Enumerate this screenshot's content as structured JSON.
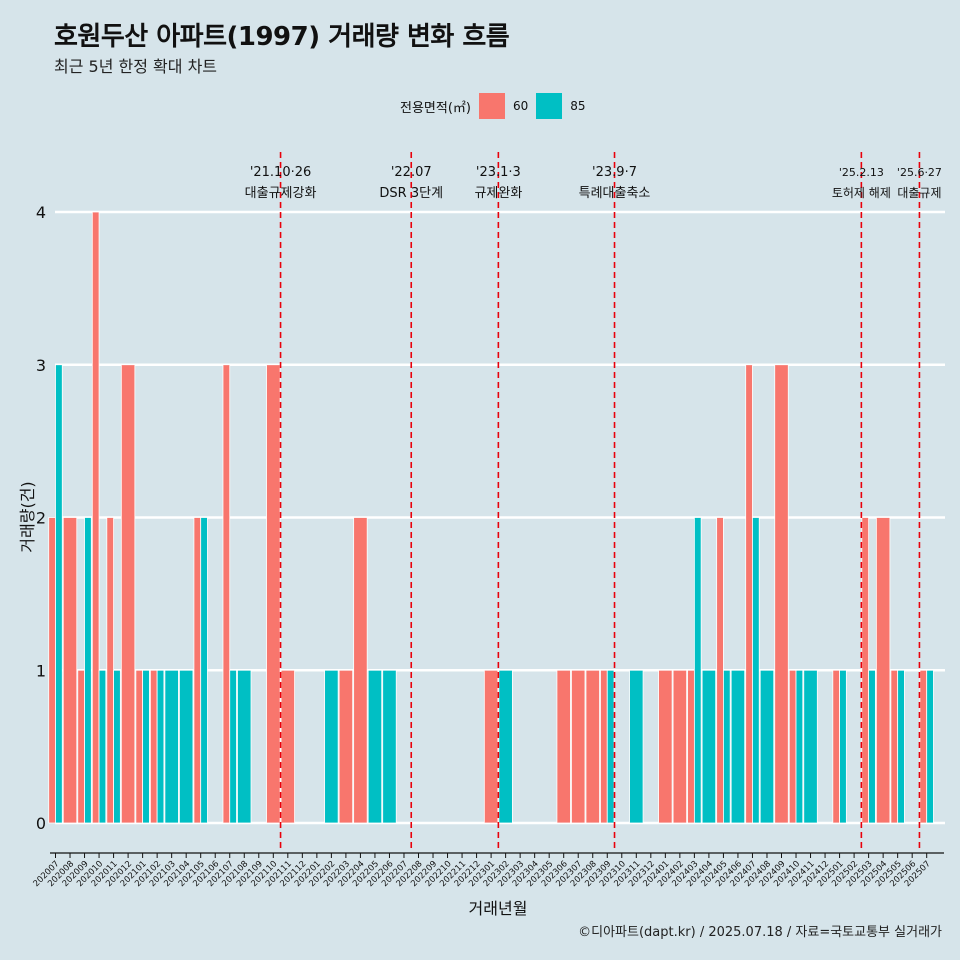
{
  "chart_data": {
    "type": "bar",
    "title": "호원두산 아파트(1997) 거래량 변화 흐름",
    "subtitle": "최근 5년 한정 확대 차트",
    "xlabel": "거래년월",
    "ylabel": "거래량(건)",
    "ylim": [
      0,
      4
    ],
    "yticks": [
      0,
      1,
      2,
      3,
      4
    ],
    "legend": {
      "title": "전용면적(㎡)",
      "position": "top"
    },
    "categories": [
      "202007",
      "202008",
      "202009",
      "202010",
      "202011",
      "202012",
      "202101",
      "202102",
      "202103",
      "202104",
      "202105",
      "202106",
      "202107",
      "202108",
      "202109",
      "202110",
      "202111",
      "202112",
      "202201",
      "202202",
      "202203",
      "202204",
      "202205",
      "202206",
      "202207",
      "202208",
      "202209",
      "202210",
      "202211",
      "202212",
      "202301",
      "202302",
      "202303",
      "202304",
      "202305",
      "202306",
      "202307",
      "202308",
      "202309",
      "202310",
      "202311",
      "202312",
      "202401",
      "202402",
      "202403",
      "202404",
      "202405",
      "202406",
      "202407",
      "202408",
      "202409",
      "202410",
      "202411",
      "202412",
      "202501",
      "202502",
      "202503",
      "202504",
      "202505",
      "202506",
      "202507"
    ],
    "series": [
      {
        "name": "60",
        "color": "#f8766d",
        "values": [
          2,
          2,
          1,
          4,
          2,
          3,
          1,
          1,
          0,
          0,
          2,
          0,
          3,
          0,
          0,
          3,
          1,
          0,
          0,
          0,
          1,
          2,
          0,
          0,
          0,
          0,
          0,
          0,
          0,
          0,
          1,
          0,
          0,
          0,
          0,
          1,
          1,
          1,
          1,
          0,
          0,
          0,
          1,
          1,
          1,
          0,
          2,
          0,
          3,
          0,
          3,
          1,
          0,
          0,
          1,
          0,
          2,
          2,
          1,
          0,
          1
        ]
      },
      {
        "name": "85",
        "color": "#00bfc4",
        "values": [
          3,
          0,
          2,
          1,
          1,
          0,
          1,
          1,
          1,
          1,
          2,
          0,
          1,
          1,
          0,
          0,
          0,
          0,
          0,
          1,
          0,
          0,
          1,
          1,
          0,
          0,
          0,
          0,
          0,
          0,
          0,
          1,
          0,
          0,
          0,
          0,
          0,
          0,
          1,
          0,
          1,
          0,
          0,
          0,
          2,
          1,
          1,
          1,
          2,
          1,
          0,
          1,
          1,
          0,
          1,
          0,
          1,
          0,
          1,
          0,
          1
        ]
      }
    ],
    "annotations": [
      {
        "after_category": "202110",
        "date": "'21.10·26",
        "label": "대출규제강화"
      },
      {
        "after_category": "202207",
        "date": "'22.07",
        "label": "DSR 3단계"
      },
      {
        "after_category": "202301",
        "date": "'23.1·3",
        "label": "규제완화"
      },
      {
        "after_category": "202309",
        "date": "'23.9·7",
        "label": "특례대출축소"
      },
      {
        "after_category": "202502",
        "date": "'25.2.13",
        "label": "토허제 해제"
      },
      {
        "after_category": "202506",
        "date": "'25.6·27",
        "label": "대출규제"
      }
    ],
    "caption": "©디아파트(dapt.kr) / 2025.07.18 / 자료=국토교통부 실거래가"
  }
}
